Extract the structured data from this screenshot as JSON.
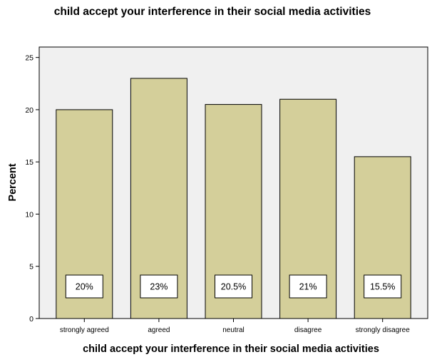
{
  "chart_data": {
    "type": "bar",
    "title": "child accept your interference in their social media activities",
    "xlabel": "child accept your interference in their social media activities",
    "ylabel": "Percent",
    "categories": [
      "strongly agreed",
      "agreed",
      "neutral",
      "disagree",
      "strongly disagree"
    ],
    "values": [
      20,
      23,
      20.5,
      21,
      15.5
    ],
    "data_labels": [
      "20%",
      "23%",
      "20.5%",
      "21%",
      "15.5%"
    ],
    "yticks": [
      0,
      5,
      10,
      15,
      20,
      25
    ],
    "ylim": [
      0,
      26
    ],
    "grid": false,
    "bar_color": "#d4cf9a",
    "plot_background": "#f0f0f0"
  }
}
